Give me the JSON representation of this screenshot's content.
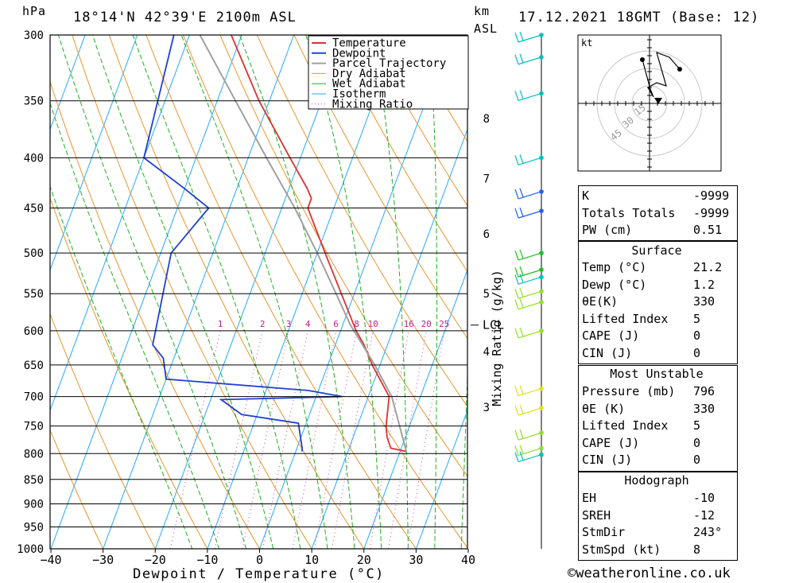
{
  "header": {
    "unit_left": "hPa",
    "location": "18°14'N  42°39'E  2100m  ASL",
    "unit_km": "km",
    "unit_asl": "ASL",
    "datetime": "17.12.2021  18GMT  (Base: 12)"
  },
  "chart_data": {
    "type": "skew-t log-p",
    "xlabel": "Dewpoint / Temperature (°C)",
    "ylabel_left": "hPa",
    "ylabel_right": "Mixing Ratio (g/kg)",
    "x_ticks": [
      -40,
      -30,
      -20,
      -10,
      0,
      10,
      20,
      30,
      40
    ],
    "x_tick_labels": [
      "−40",
      "−30",
      "−20",
      "−10",
      "0",
      "10",
      "20",
      "30",
      "40"
    ],
    "pressure_levels": [
      300,
      350,
      400,
      450,
      500,
      550,
      600,
      650,
      700,
      750,
      800,
      850,
      900,
      950,
      1000
    ],
    "pressure_labels": [
      "300",
      "350",
      "400",
      "450",
      "500",
      "550",
      "600",
      "650",
      "700",
      "750",
      "800",
      "850",
      "900",
      "950",
      "1000"
    ],
    "km_labels": [
      {
        "label": "8",
        "p": 365
      },
      {
        "label": "7",
        "p": 420
      },
      {
        "label": "6",
        "p": 478
      },
      {
        "label": "5",
        "p": 550
      },
      {
        "label": "4",
        "p": 630
      },
      {
        "label": "3",
        "p": 718
      }
    ],
    "mixing_ratios": [
      "1",
      "2",
      "3",
      "4",
      "6",
      "8",
      "10",
      "16",
      "20",
      "25"
    ],
    "lcl_label": "LCL",
    "lcl_pressure": 592,
    "legend": [
      "Temperature",
      "Dewpoint",
      "Parcel Trajectory",
      "Dry Adiabat",
      "Wet Adiabat",
      "Isotherm",
      "Mixing Ratio"
    ],
    "series": [
      {
        "name": "Temperature",
        "color": "#e03030",
        "points": [
          [
            796,
            21.2
          ],
          [
            790,
            18.0
          ],
          [
            770,
            16.5
          ],
          [
            750,
            15.5
          ],
          [
            700,
            14.0
          ],
          [
            650,
            8.5
          ],
          [
            620,
            5.5
          ],
          [
            600,
            3.0
          ],
          [
            550,
            -2.5
          ],
          [
            500,
            -8.5
          ],
          [
            450,
            -15.0
          ],
          [
            440,
            -15.0
          ],
          [
            430,
            -16.5
          ],
          [
            400,
            -22.0
          ],
          [
            350,
            -32.0
          ],
          [
            300,
            -42.0
          ]
        ]
      },
      {
        "name": "Dewpoint",
        "color": "#2040d0",
        "points": [
          [
            796,
            1.2
          ],
          [
            790,
            1.0
          ],
          [
            745,
            -1.5
          ],
          [
            730,
            -13.0
          ],
          [
            705,
            -18.0
          ],
          [
            700,
            5.0
          ],
          [
            690,
            -2.0
          ],
          [
            672,
            -30.0
          ],
          [
            640,
            -32.0
          ],
          [
            620,
            -35.0
          ],
          [
            500,
            -38.0
          ],
          [
            450,
            -34.0
          ],
          [
            430,
            -40.0
          ],
          [
            400,
            -50.0
          ],
          [
            300,
            -53.0
          ]
        ]
      },
      {
        "name": "Parcel Trajectory",
        "color": "#a0a0a0",
        "points": [
          [
            796,
            21.2
          ],
          [
            700,
            14.5
          ],
          [
            650,
            9.0
          ],
          [
            592,
            1.5
          ],
          [
            550,
            -3.5
          ],
          [
            500,
            -10.0
          ],
          [
            450,
            -17.5
          ],
          [
            400,
            -26.5
          ],
          [
            350,
            -36.5
          ],
          [
            300,
            -48.0
          ]
        ]
      }
    ],
    "wind_barb_levels": [
      300,
      316,
      344,
      400,
      433,
      453,
      500,
      520,
      529,
      547,
      561,
      600,
      687,
      719,
      762,
      790,
      802
    ],
    "wind_dot_colors": [
      "#00c0c0",
      "#00c0c0",
      "#00c0c0",
      "#00c0c0",
      "#2060f0",
      "#2060f0",
      "#20c020",
      "#20c020",
      "#00c0c0",
      "#90e020",
      "#90e020",
      "#90e020",
      "#e0e020",
      "#e0e020",
      "#90e020",
      "#90e020",
      "#00c0c0"
    ]
  },
  "hodograph": {
    "unit": "kt",
    "ring_labels": [
      "15",
      "30",
      "45"
    ]
  },
  "indices": [
    {
      "label": "K",
      "value": "-9999"
    },
    {
      "label": "Totals Totals",
      "value": "-9999"
    },
    {
      "label": "PW (cm)",
      "value": "0.51"
    }
  ],
  "surface": {
    "title": "Surface",
    "rows": [
      {
        "label": "Temp (°C)",
        "value": "21.2"
      },
      {
        "label": "Dewp (°C)",
        "value": "1.2"
      },
      {
        "label": "θE(K)",
        "value": "330"
      },
      {
        "label": "Lifted Index",
        "value": "5"
      },
      {
        "label": "CAPE (J)",
        "value": "0"
      },
      {
        "label": "CIN (J)",
        "value": "0"
      }
    ]
  },
  "most_unstable": {
    "title": "Most Unstable",
    "rows": [
      {
        "label": "Pressure (mb)",
        "value": "796"
      },
      {
        "label": "θE (K)",
        "value": "330"
      },
      {
        "label": "Lifted Index",
        "value": "5"
      },
      {
        "label": "CAPE (J)",
        "value": "0"
      },
      {
        "label": "CIN (J)",
        "value": "0"
      }
    ]
  },
  "hodograph_box": {
    "title": "Hodograph",
    "rows": [
      {
        "label": "EH",
        "value": "-10"
      },
      {
        "label": "SREH",
        "value": "-12"
      },
      {
        "label": "StmDir",
        "value": "243°"
      },
      {
        "label": "StmSpd (kt)",
        "value": "8"
      }
    ]
  },
  "credit": "©weatheronline.co.uk"
}
